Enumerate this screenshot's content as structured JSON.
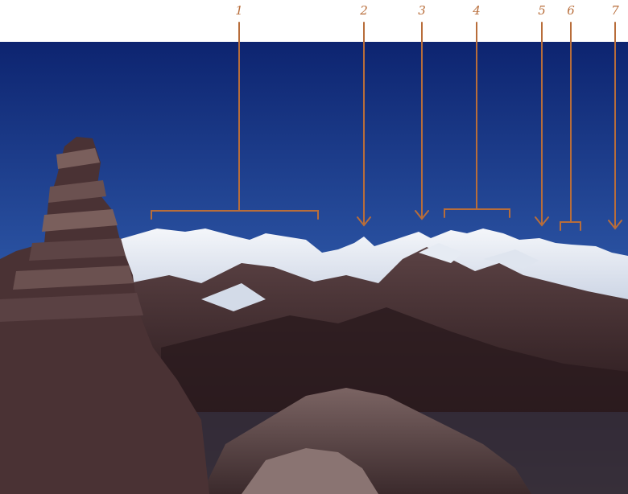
{
  "labels": [
    "1",
    "2",
    "3",
    "4",
    "5",
    "6",
    "7"
  ],
  "colors": {
    "annotation": "#b86d3a",
    "sky_top": "#0f2a78",
    "sky_bottom": "#5b86c4",
    "snow": "#eef1f6",
    "rock_dark": "#3a2628",
    "rock_mid": "#6b5150"
  }
}
